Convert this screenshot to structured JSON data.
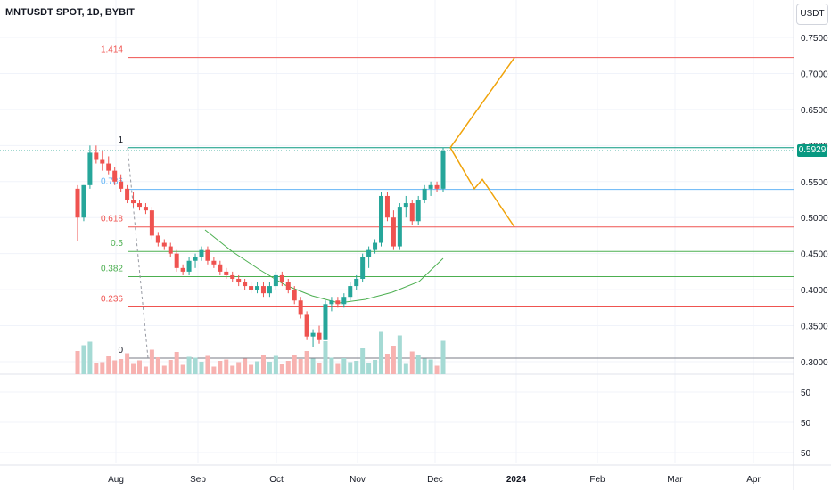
{
  "header": {
    "title": "MNTUSDT SPOT, 1D, BYBIT",
    "currency": "USDT"
  },
  "colors": {
    "up": "#26a69a",
    "down": "#ef5350",
    "fib_top": "#089981",
    "fib_786": "#64b5f6",
    "fib_618": "#ef5350",
    "fib_mid": "#4caf50",
    "projection": "#f0a30a",
    "ma": "#4caf50"
  },
  "chart_data": {
    "type": "candlestick",
    "symbol": "MNTUSDT",
    "timeframe": "1D",
    "exchange": "BYBIT",
    "last_price": "0.5929",
    "y_axis": {
      "ticks": [
        "0.7500",
        "0.7000",
        "0.6500",
        "0.6000",
        "0.5500",
        "0.5000",
        "0.4500",
        "0.4000",
        "0.3500",
        "0.3000"
      ],
      "ylim": [
        0.28,
        0.76
      ]
    },
    "volume_axis": {
      "ticks": [
        "50",
        "50",
        "50"
      ]
    },
    "x_axis": {
      "ticks": [
        "Aug",
        "Sep",
        "Oct",
        "Nov",
        "Dec",
        "2024",
        "Feb",
        "Mar",
        "Apr"
      ]
    },
    "fib_levels": [
      {
        "label": "1.414",
        "price": 0.722
      },
      {
        "label": "1",
        "price": 0.597
      },
      {
        "label": "0.786",
        "price": 0.539
      },
      {
        "label": "0.618",
        "price": 0.487
      },
      {
        "label": "0.5",
        "price": 0.453
      },
      {
        "label": "0.382",
        "price": 0.418
      },
      {
        "label": "0.236",
        "price": 0.376
      },
      {
        "label": "0",
        "price": 0.305
      }
    ],
    "candles": [
      [
        0.54,
        0.545,
        0.468,
        0.5
      ],
      [
        0.5,
        0.545,
        0.495,
        0.545
      ],
      [
        0.545,
        0.6,
        0.54,
        0.59
      ],
      [
        0.59,
        0.6,
        0.575,
        0.58
      ],
      [
        0.58,
        0.592,
        0.565,
        0.575
      ],
      [
        0.575,
        0.585,
        0.56,
        0.565
      ],
      [
        0.565,
        0.57,
        0.545,
        0.55
      ],
      [
        0.55,
        0.56,
        0.535,
        0.54
      ],
      [
        0.54,
        0.545,
        0.52,
        0.525
      ],
      [
        0.525,
        0.535,
        0.515,
        0.52
      ],
      [
        0.52,
        0.525,
        0.51,
        0.515
      ],
      [
        0.515,
        0.52,
        0.505,
        0.51
      ],
      [
        0.51,
        0.515,
        0.47,
        0.475
      ],
      [
        0.475,
        0.48,
        0.46,
        0.465
      ],
      [
        0.465,
        0.47,
        0.455,
        0.46
      ],
      [
        0.46,
        0.465,
        0.445,
        0.45
      ],
      [
        0.45,
        0.455,
        0.425,
        0.43
      ],
      [
        0.43,
        0.435,
        0.42,
        0.425
      ],
      [
        0.425,
        0.445,
        0.42,
        0.44
      ],
      [
        0.44,
        0.45,
        0.43,
        0.445
      ],
      [
        0.445,
        0.46,
        0.44,
        0.455
      ],
      [
        0.455,
        0.46,
        0.435,
        0.44
      ],
      [
        0.44,
        0.445,
        0.43,
        0.435
      ],
      [
        0.435,
        0.44,
        0.42,
        0.425
      ],
      [
        0.425,
        0.43,
        0.415,
        0.42
      ],
      [
        0.42,
        0.425,
        0.41,
        0.415
      ],
      [
        0.415,
        0.42,
        0.405,
        0.41
      ],
      [
        0.41,
        0.415,
        0.4,
        0.405
      ],
      [
        0.405,
        0.41,
        0.395,
        0.4
      ],
      [
        0.4,
        0.41,
        0.395,
        0.405
      ],
      [
        0.405,
        0.41,
        0.39,
        0.395
      ],
      [
        0.395,
        0.41,
        0.39,
        0.405
      ],
      [
        0.405,
        0.425,
        0.4,
        0.42
      ],
      [
        0.42,
        0.425,
        0.405,
        0.41
      ],
      [
        0.41,
        0.415,
        0.395,
        0.4
      ],
      [
        0.4,
        0.405,
        0.38,
        0.385
      ],
      [
        0.385,
        0.39,
        0.36,
        0.365
      ],
      [
        0.365,
        0.37,
        0.33,
        0.335
      ],
      [
        0.335,
        0.345,
        0.32,
        0.34
      ],
      [
        0.34,
        0.35,
        0.325,
        0.33
      ],
      [
        0.33,
        0.385,
        0.33,
        0.38
      ],
      [
        0.38,
        0.39,
        0.37,
        0.385
      ],
      [
        0.385,
        0.39,
        0.375,
        0.38
      ],
      [
        0.38,
        0.395,
        0.375,
        0.39
      ],
      [
        0.39,
        0.41,
        0.385,
        0.405
      ],
      [
        0.405,
        0.42,
        0.4,
        0.415
      ],
      [
        0.415,
        0.45,
        0.41,
        0.445
      ],
      [
        0.445,
        0.46,
        0.43,
        0.455
      ],
      [
        0.455,
        0.47,
        0.45,
        0.465
      ],
      [
        0.465,
        0.535,
        0.46,
        0.53
      ],
      [
        0.53,
        0.535,
        0.495,
        0.5
      ],
      [
        0.5,
        0.51,
        0.455,
        0.46
      ],
      [
        0.46,
        0.52,
        0.455,
        0.515
      ],
      [
        0.515,
        0.53,
        0.5,
        0.52
      ],
      [
        0.52,
        0.525,
        0.49,
        0.495
      ],
      [
        0.495,
        0.53,
        0.49,
        0.525
      ],
      [
        0.525,
        0.545,
        0.52,
        0.54
      ],
      [
        0.54,
        0.55,
        0.53,
        0.545
      ],
      [
        0.545,
        0.55,
        0.535,
        0.54
      ],
      [
        0.54,
        0.597,
        0.535,
        0.593
      ]
    ]
  }
}
